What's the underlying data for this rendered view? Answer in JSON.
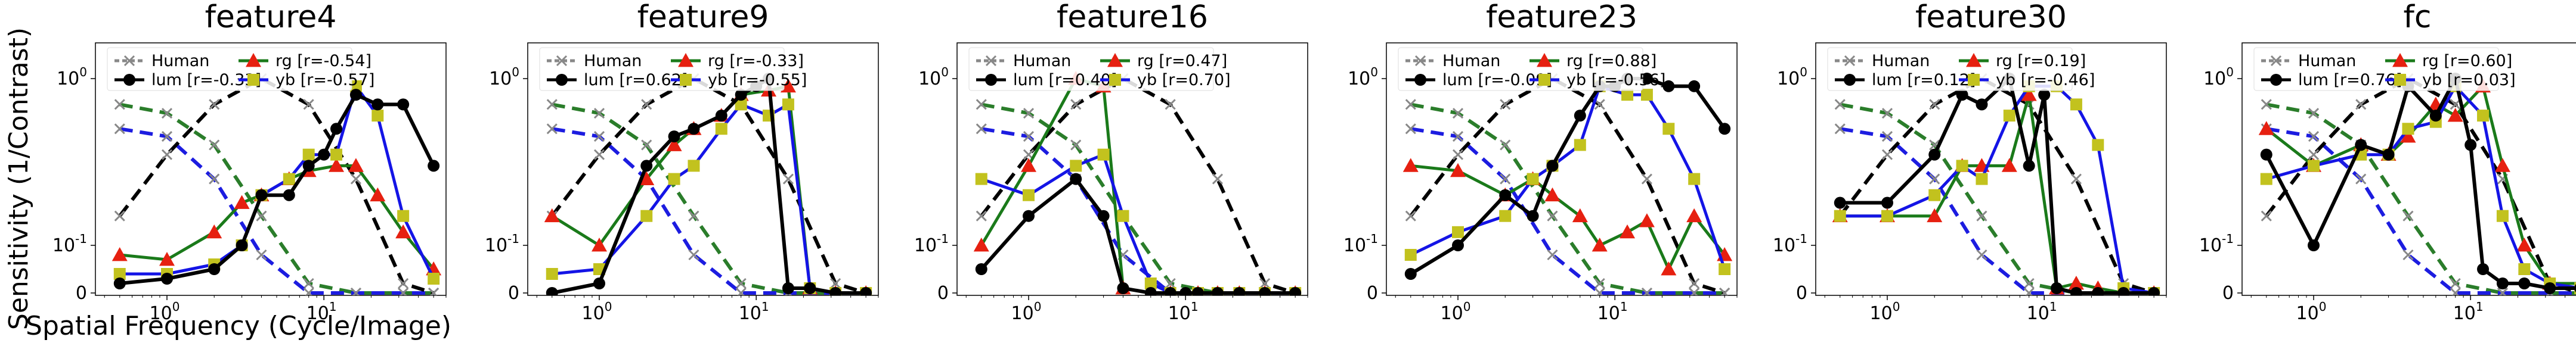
{
  "figure": {
    "ylabel": "Sensitivity (1/Contrast)",
    "xlabel": "Spatial Frequency (Cycle/Image)"
  },
  "chart_data": [
    {
      "type": "line",
      "title": "feature4",
      "xscale": "log",
      "yscale": "symlog",
      "xlim": [
        0.35,
        60
      ],
      "ylim": [
        0,
        1.6
      ],
      "xticks": [
        1,
        10
      ],
      "xtick_labels": [
        "10^0",
        "10^1"
      ],
      "yticks": [
        0,
        0.1,
        1
      ],
      "ytick_labels": [
        "0",
        "10^-1",
        "10^0"
      ],
      "legend": [
        {
          "label": "Human",
          "r": ""
        },
        {
          "label": "lum",
          "r": "[r=-0.33]"
        },
        {
          "label": "rg",
          "r": "[r=-0.54]"
        },
        {
          "label": "yb",
          "r": "[r=-0.57]"
        }
      ],
      "human_lum": {
        "x": [
          0.5,
          1,
          2,
          4,
          8,
          16,
          32,
          50
        ],
        "y": [
          0.15,
          0.35,
          0.7,
          1.0,
          0.7,
          0.25,
          0.02,
          0.0
        ]
      },
      "human_rg": {
        "x": [
          0.5,
          1,
          2,
          4,
          8,
          16,
          32,
          50
        ],
        "y": [
          0.7,
          0.62,
          0.4,
          0.15,
          0.02,
          0.0,
          0.0,
          0.0
        ]
      },
      "human_yb": {
        "x": [
          0.5,
          1,
          2,
          4,
          8,
          16,
          32,
          50
        ],
        "y": [
          0.5,
          0.45,
          0.25,
          0.08,
          0.0,
          0.0,
          0.0,
          0.0
        ]
      },
      "lum": {
        "x": [
          0.5,
          1,
          2,
          3,
          4,
          6,
          8,
          10,
          12,
          16,
          22,
          32,
          50
        ],
        "y": [
          0.02,
          0.03,
          0.05,
          0.1,
          0.2,
          0.2,
          0.3,
          0.35,
          0.5,
          0.8,
          0.7,
          0.7,
          0.3
        ]
      },
      "rg": {
        "x": [
          0.5,
          1,
          2,
          3,
          4,
          6,
          8,
          12,
          16,
          22,
          32,
          50
        ],
        "y": [
          0.08,
          0.07,
          0.12,
          0.18,
          0.2,
          0.25,
          0.28,
          0.3,
          0.3,
          0.2,
          0.12,
          0.05
        ]
      },
      "yb": {
        "x": [
          0.5,
          1,
          2,
          3,
          4,
          6,
          8,
          12,
          16,
          22,
          32,
          50
        ],
        "y": [
          0.04,
          0.04,
          0.06,
          0.1,
          0.2,
          0.25,
          0.35,
          0.35,
          0.9,
          0.6,
          0.15,
          0.03
        ]
      }
    },
    {
      "type": "line",
      "title": "feature9",
      "xscale": "log",
      "yscale": "symlog",
      "xlim": [
        0.35,
        60
      ],
      "ylim": [
        0,
        1.6
      ],
      "xticks": [
        1,
        10
      ],
      "xtick_labels": [
        "10^0",
        "10^1"
      ],
      "yticks": [
        0,
        0.1,
        1
      ],
      "ytick_labels": [
        "0",
        "10^-1",
        "10^0"
      ],
      "legend": [
        {
          "label": "Human",
          "r": ""
        },
        {
          "label": "lum",
          "r": "[r=0.62]"
        },
        {
          "label": "rg",
          "r": "[r=-0.33]"
        },
        {
          "label": "yb",
          "r": "[r=-0.55]"
        }
      ],
      "human_lum": {
        "x": [
          0.5,
          1,
          2,
          4,
          8,
          16,
          32,
          50
        ],
        "y": [
          0.15,
          0.35,
          0.7,
          1.0,
          0.7,
          0.25,
          0.02,
          0.0
        ]
      },
      "human_rg": {
        "x": [
          0.5,
          1,
          2,
          4,
          8,
          16,
          32,
          50
        ],
        "y": [
          0.7,
          0.62,
          0.4,
          0.15,
          0.02,
          0.0,
          0.0,
          0.0
        ]
      },
      "human_yb": {
        "x": [
          0.5,
          1,
          2,
          4,
          8,
          16,
          32,
          50
        ],
        "y": [
          0.5,
          0.45,
          0.25,
          0.08,
          0.0,
          0.0,
          0.0,
          0.0
        ]
      },
      "lum": {
        "x": [
          0.5,
          1,
          2,
          3,
          4,
          6,
          8,
          10,
          12,
          16,
          22,
          32,
          50
        ],
        "y": [
          0.0,
          0.02,
          0.3,
          0.45,
          0.5,
          0.6,
          0.8,
          0.9,
          1.0,
          0.01,
          0.01,
          0.0,
          0.0
        ]
      },
      "rg": {
        "x": [
          0.5,
          1,
          2,
          3,
          4,
          6,
          8,
          12,
          16,
          22,
          32,
          50
        ],
        "y": [
          0.15,
          0.1,
          0.25,
          0.4,
          0.5,
          0.6,
          0.8,
          0.85,
          0.9,
          0.01,
          0.0,
          0.0
        ]
      },
      "yb": {
        "x": [
          0.5,
          1,
          2,
          3,
          4,
          6,
          8,
          12,
          16,
          22,
          32,
          50
        ],
        "y": [
          0.04,
          0.05,
          0.15,
          0.25,
          0.3,
          0.5,
          0.7,
          0.6,
          0.7,
          0.01,
          0.0,
          0.0
        ]
      }
    },
    {
      "type": "line",
      "title": "feature16",
      "xscale": "log",
      "yscale": "symlog",
      "xlim": [
        0.35,
        60
      ],
      "ylim": [
        0,
        1.6
      ],
      "xticks": [
        1,
        10
      ],
      "xtick_labels": [
        "10^0",
        "10^1"
      ],
      "yticks": [
        0,
        0.1,
        1
      ],
      "ytick_labels": [
        "0",
        "10^-1",
        "10^0"
      ],
      "legend": [
        {
          "label": "Human",
          "r": ""
        },
        {
          "label": "lum",
          "r": "[r=0.40]"
        },
        {
          "label": "rg",
          "r": "[r=0.47]"
        },
        {
          "label": "yb",
          "r": "[r=0.70]"
        }
      ],
      "human_lum": {
        "x": [
          0.5,
          1,
          2,
          4,
          8,
          16,
          32,
          50
        ],
        "y": [
          0.15,
          0.35,
          0.7,
          1.0,
          0.7,
          0.25,
          0.02,
          0.0
        ]
      },
      "human_rg": {
        "x": [
          0.5,
          1,
          2,
          4,
          8,
          16,
          32,
          50
        ],
        "y": [
          0.7,
          0.62,
          0.4,
          0.15,
          0.02,
          0.0,
          0.0,
          0.0
        ]
      },
      "human_yb": {
        "x": [
          0.5,
          1,
          2,
          4,
          8,
          16,
          32,
          50
        ],
        "y": [
          0.5,
          0.45,
          0.25,
          0.08,
          0.0,
          0.0,
          0.0,
          0.0
        ]
      },
      "lum": {
        "x": [
          0.5,
          1,
          2,
          3,
          4,
          6,
          8,
          10,
          12,
          16,
          22,
          32,
          50
        ],
        "y": [
          0.05,
          0.15,
          0.25,
          0.15,
          0.01,
          0.0,
          0.0,
          0.0,
          0.0,
          0.0,
          0.0,
          0.0,
          0.0
        ]
      },
      "rg": {
        "x": [
          0.5,
          1,
          2,
          3,
          4,
          6,
          8,
          12,
          16,
          22,
          32,
          50
        ],
        "y": [
          0.1,
          0.3,
          1.0,
          0.9,
          0.01,
          0.0,
          0.0,
          0.0,
          0.0,
          0.0,
          0.0,
          0.0
        ]
      },
      "yb": {
        "x": [
          0.5,
          1,
          2,
          3,
          4,
          6,
          8,
          12,
          16,
          22,
          32,
          50
        ],
        "y": [
          0.25,
          0.2,
          0.3,
          0.35,
          0.15,
          0.02,
          0.0,
          0.0,
          0.0,
          0.0,
          0.0,
          0.0
        ]
      }
    },
    {
      "type": "line",
      "title": "feature23",
      "xscale": "log",
      "yscale": "symlog",
      "xlim": [
        0.35,
        60
      ],
      "ylim": [
        0,
        1.6
      ],
      "xticks": [
        1,
        10
      ],
      "xtick_labels": [
        "10^0",
        "10^1"
      ],
      "yticks": [
        0,
        0.1,
        1
      ],
      "ytick_labels": [
        "0",
        "10^-1",
        "10^0"
      ],
      "legend": [
        {
          "label": "Human",
          "r": ""
        },
        {
          "label": "lum",
          "r": "[r=-0.09]"
        },
        {
          "label": "rg",
          "r": "[r=0.88]"
        },
        {
          "label": "yb",
          "r": "[r=-0.56]"
        }
      ],
      "human_lum": {
        "x": [
          0.5,
          1,
          2,
          4,
          8,
          16,
          32,
          50
        ],
        "y": [
          0.15,
          0.35,
          0.7,
          1.0,
          0.7,
          0.25,
          0.02,
          0.0
        ]
      },
      "human_rg": {
        "x": [
          0.5,
          1,
          2,
          4,
          8,
          16,
          32,
          50
        ],
        "y": [
          0.7,
          0.62,
          0.4,
          0.15,
          0.02,
          0.0,
          0.0,
          0.0
        ]
      },
      "human_yb": {
        "x": [
          0.5,
          1,
          2,
          4,
          8,
          16,
          32,
          50
        ],
        "y": [
          0.5,
          0.45,
          0.25,
          0.08,
          0.0,
          0.0,
          0.0,
          0.0
        ]
      },
      "lum": {
        "x": [
          0.5,
          1,
          2,
          3,
          4,
          6,
          8,
          10,
          12,
          16,
          22,
          32,
          50
        ],
        "y": [
          0.04,
          0.1,
          0.2,
          0.15,
          0.3,
          0.6,
          0.9,
          0.9,
          1.0,
          1.0,
          0.9,
          0.9,
          0.5
        ]
      },
      "rg": {
        "x": [
          0.5,
          1,
          2,
          3,
          4,
          6,
          8,
          12,
          16,
          22,
          32,
          50
        ],
        "y": [
          0.3,
          0.28,
          0.2,
          0.25,
          0.2,
          0.15,
          0.1,
          0.12,
          0.14,
          0.05,
          0.15,
          0.08
        ]
      },
      "yb": {
        "x": [
          0.5,
          1,
          2,
          3,
          4,
          6,
          8,
          12,
          16,
          22,
          32,
          50
        ],
        "y": [
          0.08,
          0.12,
          0.15,
          0.25,
          0.3,
          0.4,
          0.9,
          0.8,
          0.8,
          0.5,
          0.25,
          0.05
        ]
      }
    },
    {
      "type": "line",
      "title": "feature30",
      "xscale": "log",
      "yscale": "symlog",
      "xlim": [
        0.35,
        60
      ],
      "ylim": [
        0,
        1.6
      ],
      "xticks": [
        1,
        10
      ],
      "xtick_labels": [
        "10^0",
        "10^1"
      ],
      "yticks": [
        0,
        0.1,
        1
      ],
      "ytick_labels": [
        "0",
        "10^-1",
        "10^0"
      ],
      "legend": [
        {
          "label": "Human",
          "r": ""
        },
        {
          "label": "lum",
          "r": "[r=0.12]"
        },
        {
          "label": "rg",
          "r": "[r=0.19]"
        },
        {
          "label": "yb",
          "r": "[r=-0.46]"
        }
      ],
      "human_lum": {
        "x": [
          0.5,
          1,
          2,
          4,
          8,
          16,
          32,
          50
        ],
        "y": [
          0.15,
          0.35,
          0.7,
          1.0,
          0.7,
          0.25,
          0.02,
          0.0
        ]
      },
      "human_rg": {
        "x": [
          0.5,
          1,
          2,
          4,
          8,
          16,
          32,
          50
        ],
        "y": [
          0.7,
          0.62,
          0.4,
          0.15,
          0.02,
          0.0,
          0.0,
          0.0
        ]
      },
      "human_yb": {
        "x": [
          0.5,
          1,
          2,
          4,
          8,
          16,
          32,
          50
        ],
        "y": [
          0.5,
          0.45,
          0.25,
          0.08,
          0.0,
          0.0,
          0.0,
          0.0
        ]
      },
      "lum": {
        "x": [
          0.5,
          1,
          2,
          3,
          4,
          6,
          8,
          10,
          12,
          16,
          22,
          32,
          50
        ],
        "y": [
          0.18,
          0.18,
          0.35,
          0.8,
          0.7,
          1.0,
          0.3,
          0.8,
          0.01,
          0.0,
          0.0,
          0.0,
          0.0
        ]
      },
      "rg": {
        "x": [
          0.5,
          1,
          2,
          3,
          4,
          6,
          8,
          12,
          16,
          22,
          32,
          50
        ],
        "y": [
          0.15,
          0.15,
          0.15,
          0.3,
          0.3,
          0.3,
          0.8,
          0.01,
          0.02,
          0.01,
          0.0,
          0.0
        ]
      },
      "yb": {
        "x": [
          0.5,
          1,
          2,
          3,
          4,
          6,
          8,
          12,
          16,
          22,
          32,
          50
        ],
        "y": [
          0.15,
          0.15,
          0.2,
          0.3,
          0.25,
          0.6,
          0.9,
          0.9,
          0.7,
          0.4,
          0.01,
          0.0
        ]
      }
    },
    {
      "type": "line",
      "title": "fc",
      "xscale": "log",
      "yscale": "symlog",
      "xlim": [
        0.35,
        60
      ],
      "ylim": [
        0,
        1.6
      ],
      "xticks": [
        1,
        10
      ],
      "xtick_labels": [
        "10^0",
        "10^1"
      ],
      "yticks": [
        0,
        0.1,
        1
      ],
      "ytick_labels": [
        "0",
        "10^-1",
        "10^0"
      ],
      "legend": [
        {
          "label": "Human",
          "r": ""
        },
        {
          "label": "lum",
          "r": "[r=0.76]"
        },
        {
          "label": "rg",
          "r": "[r=0.60]"
        },
        {
          "label": "yb",
          "r": "[r=0.03]"
        }
      ],
      "human_lum": {
        "x": [
          0.5,
          1,
          2,
          4,
          8,
          16,
          32,
          50
        ],
        "y": [
          0.15,
          0.35,
          0.7,
          1.0,
          0.7,
          0.25,
          0.02,
          0.0
        ]
      },
      "human_rg": {
        "x": [
          0.5,
          1,
          2,
          4,
          8,
          16,
          32,
          50
        ],
        "y": [
          0.7,
          0.62,
          0.4,
          0.15,
          0.02,
          0.0,
          0.0,
          0.0
        ]
      },
      "human_yb": {
        "x": [
          0.5,
          1,
          2,
          4,
          8,
          16,
          32,
          50
        ],
        "y": [
          0.5,
          0.45,
          0.25,
          0.08,
          0.0,
          0.0,
          0.0,
          0.0
        ]
      },
      "lum": {
        "x": [
          0.5,
          1,
          2,
          3,
          4,
          6,
          8,
          10,
          12,
          16,
          22,
          32,
          50
        ],
        "y": [
          0.35,
          0.1,
          0.4,
          0.35,
          0.9,
          0.6,
          1.0,
          0.4,
          0.05,
          0.02,
          0.02,
          0.01,
          0.01
        ]
      },
      "rg": {
        "x": [
          0.5,
          1,
          2,
          3,
          4,
          6,
          8,
          12,
          16,
          22,
          32,
          50
        ],
        "y": [
          0.5,
          0.3,
          0.4,
          0.35,
          0.45,
          0.7,
          0.6,
          0.9,
          0.3,
          0.1,
          0.02,
          0.02
        ]
      },
      "yb": {
        "x": [
          0.5,
          1,
          2,
          3,
          4,
          6,
          8,
          12,
          16,
          22,
          32,
          50
        ],
        "y": [
          0.25,
          0.3,
          0.35,
          0.35,
          0.5,
          0.55,
          0.9,
          0.6,
          0.15,
          0.05,
          0.02,
          0.01
        ]
      }
    }
  ],
  "colors": {
    "lum": "#000000",
    "rg": "#1a7a1a",
    "yb": "#1414e6",
    "rg_marker": "#e62010",
    "yb_marker": "#c2c21e",
    "human_marker": "#888888",
    "human_lum": "#000000",
    "human_rg": "#2a7d2a",
    "human_yb": "#1c1ce0"
  }
}
